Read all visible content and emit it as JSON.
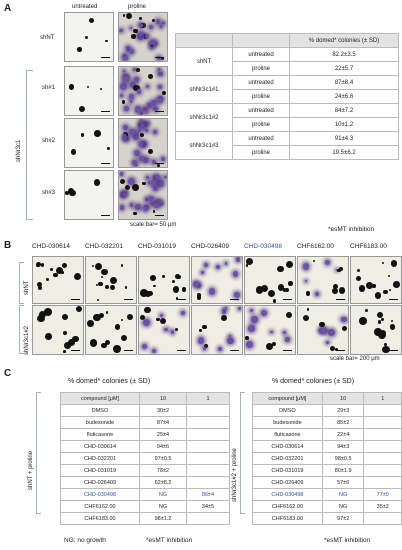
{
  "panelA": {
    "letter": "A",
    "col_headers": [
      "untreated",
      "proline"
    ],
    "row_labels": [
      "shNT",
      "sh#1",
      "sh#2",
      "sh#3"
    ],
    "group_label": "shNr3c1",
    "scale_bar": "scale bar= 50 μm",
    "table": {
      "header": "% domed* colonies (± SD)",
      "rows": [
        {
          "group": "shNT",
          "condition": "untreated",
          "value": "82.2±3.5"
        },
        {
          "group": "",
          "condition": "proline",
          "value": "22±5.7"
        },
        {
          "group": "shNr3c1#1",
          "condition": "untreated",
          "value": "87±8.4"
        },
        {
          "group": "",
          "condition": "proline",
          "value": "24±6.6"
        },
        {
          "group": "shNr3c1#2",
          "condition": "untreated",
          "value": "84±7.2"
        },
        {
          "group": "",
          "condition": "proline",
          "value": "10±1.2"
        },
        {
          "group": "shNr3c1#3",
          "condition": "untreated",
          "value": "91±4.3"
        },
        {
          "group": "",
          "condition": "proline",
          "value": "19.5±6.2"
        }
      ],
      "footnote": "*esMT inhibition"
    }
  },
  "panelB": {
    "letter": "B",
    "compounds": [
      "CHD-030614",
      "CHD-032201",
      "CHD-031019",
      "CHD-026409",
      "CHD-030498",
      "CHF6162.00",
      "CHF6183.00"
    ],
    "row_labels": [
      "shNT",
      "shNr3c1#2"
    ],
    "scale_bar": "scale bar= 200 μm",
    "highlight_color": "#2d55a6"
  },
  "panelC": {
    "letter": "C",
    "left": {
      "title": "% domed* colonies (± SD)",
      "side_label": "shNT + proline",
      "header": [
        "compound [μM]",
        "10",
        "1"
      ],
      "rows": [
        [
          "DMSO",
          "30±2",
          ""
        ],
        [
          "budesonide",
          "87±4",
          ""
        ],
        [
          "fluticasone",
          "25±4",
          ""
        ],
        [
          "CHD-030614",
          "94±6",
          ""
        ],
        [
          "CHD-032201",
          "97±0.5",
          ""
        ],
        [
          "CHD-031019",
          "78±2",
          ""
        ],
        [
          "CHD-026409",
          "62±8.2",
          ""
        ],
        [
          "CHD-030498",
          "NG",
          "86±4"
        ],
        [
          "CHF6162.00",
          "NG",
          "34±5"
        ],
        [
          "CHF6183.00",
          "98±1.2",
          ""
        ]
      ],
      "footnote_left": "NG: no growth",
      "footnote_right": "*esMT inhibition"
    },
    "right": {
      "title": "% domed* colonies (± SD)",
      "side_label": "shNr3c1#2 + proline",
      "header": [
        "compound [μM]",
        "10",
        "1"
      ],
      "rows": [
        [
          "DMSO",
          "29±3",
          ""
        ],
        [
          "budesonide",
          "85±2",
          ""
        ],
        [
          "fluticasone",
          "22±4",
          ""
        ],
        [
          "CHD-030614",
          "94±3",
          ""
        ],
        [
          "CHD-032201",
          "98±0.5",
          ""
        ],
        [
          "CHD-031019",
          "80±1.9",
          ""
        ],
        [
          "CHD-026409",
          "57±6",
          ""
        ],
        [
          "CHD-030498",
          "NG",
          "77±9"
        ],
        [
          "CHF6162.00",
          "NG",
          "35±2"
        ],
        [
          "CHF6183.00",
          "97±2",
          ""
        ]
      ],
      "footnote": "*esMT inhibition"
    }
  }
}
